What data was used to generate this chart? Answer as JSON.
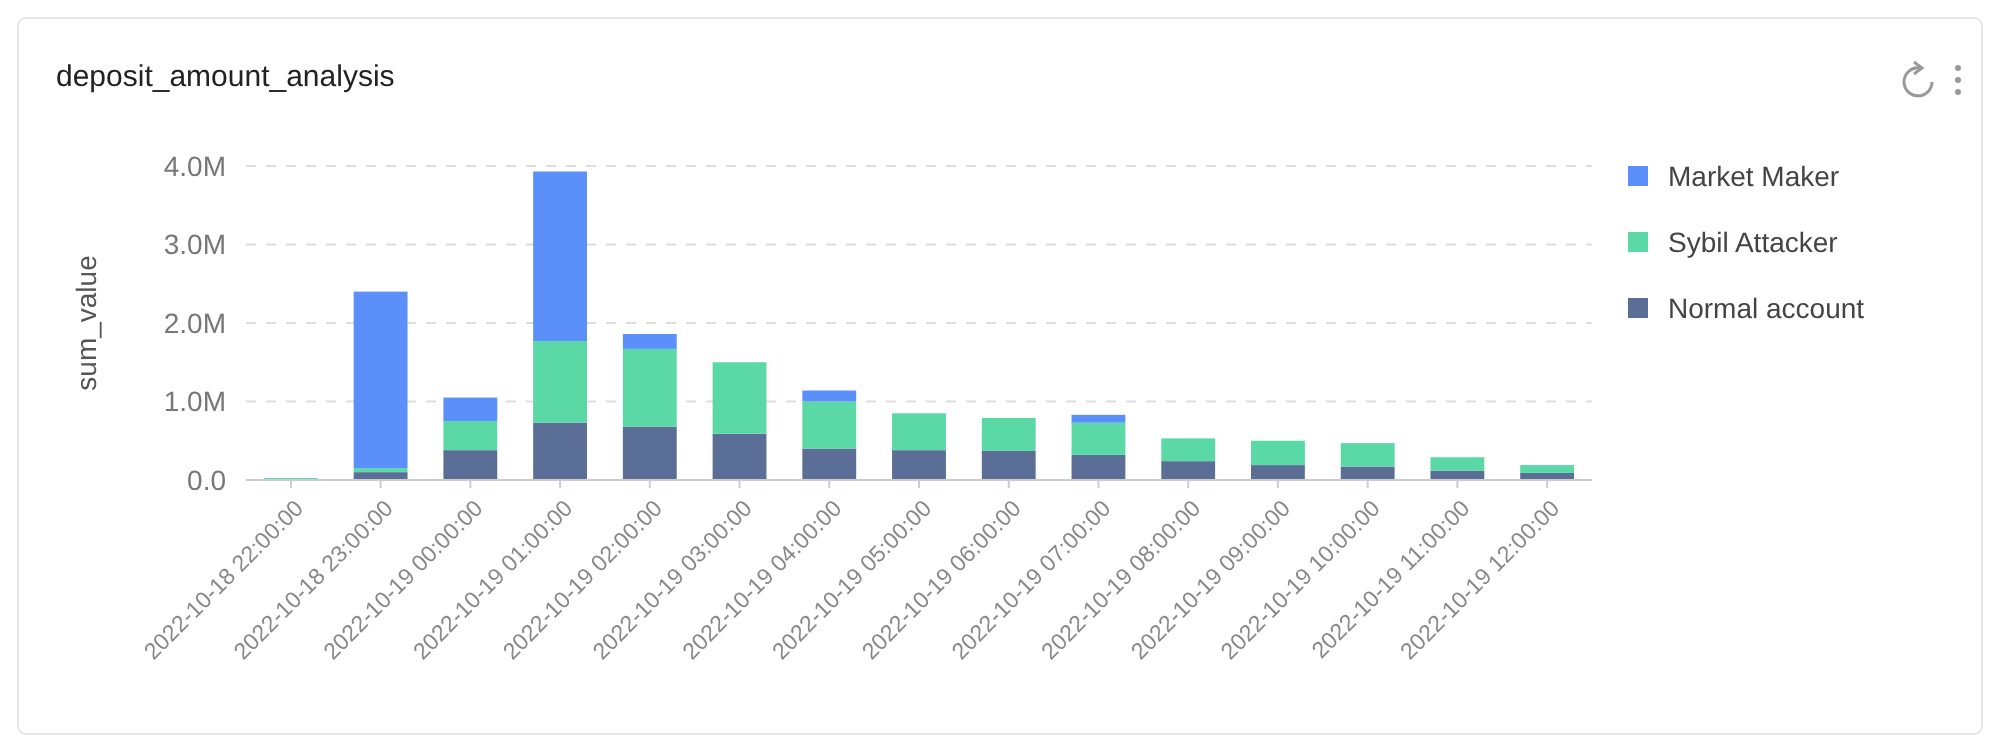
{
  "chart_data": {
    "type": "bar",
    "title": "deposit_amount_analysis",
    "ylabel": "sum_value",
    "stacked": true,
    "grid": "y",
    "legend": "right",
    "categories": [
      "2022-10-18 22:00:00",
      "2022-10-18 23:00:00",
      "2022-10-19 00:00:00",
      "2022-10-19 01:00:00",
      "2022-10-19 02:00:00",
      "2022-10-19 03:00:00",
      "2022-10-19 04:00:00",
      "2022-10-19 05:00:00",
      "2022-10-19 06:00:00",
      "2022-10-19 07:00:00",
      "2022-10-19 08:00:00",
      "2022-10-19 09:00:00",
      "2022-10-19 10:00:00",
      "2022-10-19 11:00:00",
      "2022-10-19 12:00:00"
    ],
    "series": [
      {
        "name": "Normal account",
        "color": "#5b6e96",
        "values": [
          5000,
          100000,
          380000,
          730000,
          680000,
          590000,
          400000,
          380000,
          370000,
          320000,
          240000,
          190000,
          170000,
          120000,
          90000
        ]
      },
      {
        "name": "Sybil Attacker",
        "color": "#5ad8a6",
        "values": [
          20000,
          50000,
          370000,
          1040000,
          990000,
          910000,
          600000,
          470000,
          420000,
          410000,
          290000,
          310000,
          300000,
          170000,
          100000
        ]
      },
      {
        "name": "Market Maker",
        "color": "#5b8ff9",
        "values": [
          0,
          2250000,
          300000,
          2160000,
          190000,
          0,
          140000,
          0,
          0,
          100000,
          0,
          0,
          0,
          0,
          0
        ]
      }
    ],
    "ylim": [
      0,
      4000000
    ],
    "yticks": [
      {
        "value": 0,
        "label": "0.0"
      },
      {
        "value": 1000000,
        "label": "1.0M"
      },
      {
        "value": 2000000,
        "label": "2.0M"
      },
      {
        "value": 3000000,
        "label": "3.0M"
      },
      {
        "value": 4000000,
        "label": "4.0M"
      }
    ]
  }
}
